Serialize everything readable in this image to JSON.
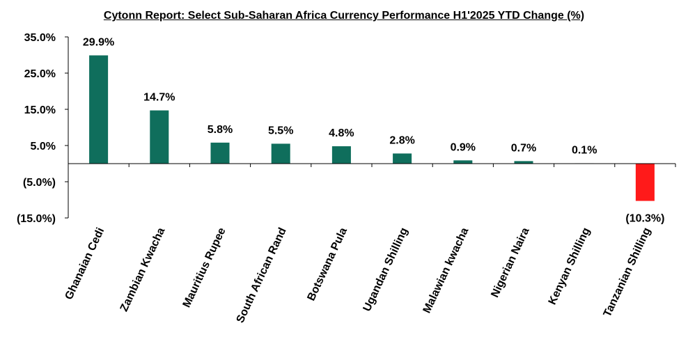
{
  "chart_data": {
    "type": "bar",
    "title": "Cytonn Report: Select  Sub-Saharan Africa Currency Performance  H1'2025 YTD Change (%)",
    "categories": [
      "Ghanaian Cedi",
      "Zambian Kwacha",
      "Mauritius Rupee",
      "South African Rand",
      "Botswana Pula",
      "Ugandan Shilling",
      "Malawian kwacha",
      "Nigerian Naira",
      "Kenyan Shilling",
      "Tanzanian Shilling"
    ],
    "values": [
      29.9,
      14.7,
      5.8,
      5.5,
      4.8,
      2.8,
      0.9,
      0.7,
      0.1,
      -10.3
    ],
    "data_labels": [
      "29.9%",
      "14.7%",
      "5.8%",
      "5.5%",
      "4.8%",
      "2.8%",
      "0.9%",
      "0.7%",
      "0.1%",
      "(10.3%)"
    ],
    "yticks": [
      35,
      25,
      15,
      5,
      -5,
      -15
    ],
    "ytick_labels": [
      "35.0%",
      "25.0%",
      "15.0%",
      "5.0%",
      "(5.0%)",
      "(15.0%)"
    ],
    "ylim": [
      -15,
      35
    ],
    "xlabel": "",
    "ylabel": "",
    "colors": {
      "positive": "#0f6e5c",
      "negative": "#ff1a1a"
    },
    "grid": false,
    "legend": "none"
  }
}
